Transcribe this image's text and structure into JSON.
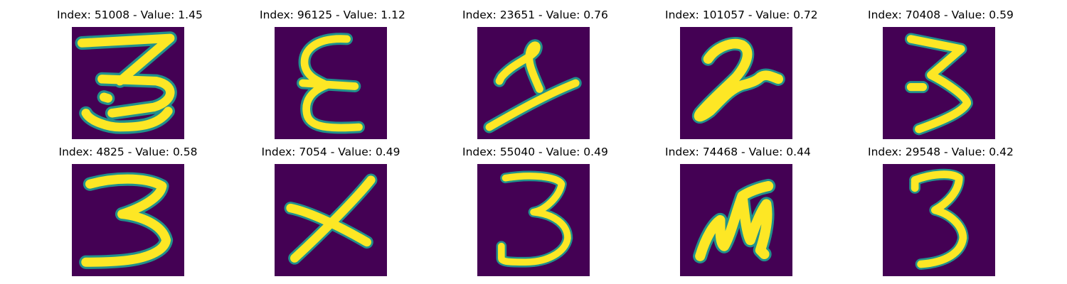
{
  "colors": {
    "background": "#440154",
    "glyph_core": "#fde725",
    "glyph_edge": "#21918c"
  },
  "samples": [
    {
      "title": "Index: 51008 - Value: 1.45"
    },
    {
      "title": "Index: 96125 - Value: 1.12"
    },
    {
      "title": "Index: 23651 - Value: 0.76"
    },
    {
      "title": "Index: 101057 - Value: 0.72"
    },
    {
      "title": "Index: 70408 - Value: 0.59"
    },
    {
      "title": "Index: 4825 - Value: 0.58"
    },
    {
      "title": "Index: 7054 - Value: 0.49"
    },
    {
      "title": "Index: 55040 - Value: 0.49"
    },
    {
      "title": "Index: 74468 - Value: 0.44"
    },
    {
      "title": "Index: 29548 - Value: 0.42"
    }
  ]
}
